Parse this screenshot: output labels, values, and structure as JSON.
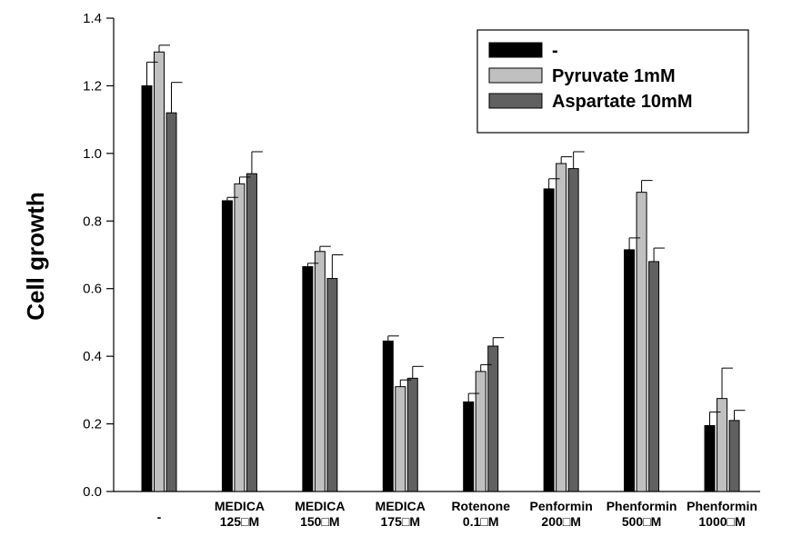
{
  "chart_data": {
    "type": "bar",
    "title": "",
    "xlabel": "",
    "ylabel": "Cell growth",
    "ylim": [
      0,
      1.4
    ],
    "yticks": [
      "0.0",
      "0.2",
      "0.4",
      "0.6",
      "0.8",
      "1.0",
      "1.2",
      "1.4"
    ],
    "grid": false,
    "legend_position": "top-right",
    "categories": [
      [
        "-"
      ],
      [
        "MEDICA",
        "125□M"
      ],
      [
        "MEDICA",
        "150□M"
      ],
      [
        "MEDICA",
        "175□M"
      ],
      [
        "Rotenone",
        "0.1□M"
      ],
      [
        "Penformin",
        "200□M"
      ],
      [
        "Phenformin",
        "500□M"
      ],
      [
        "Phenformin",
        "1000□M"
      ]
    ],
    "series": [
      {
        "name": "-",
        "color": "#000000",
        "values": [
          1.2,
          0.86,
          0.665,
          0.445,
          0.265,
          0.895,
          0.715,
          0.195
        ],
        "errors": [
          0.07,
          0.01,
          0.01,
          0.015,
          0.025,
          0.03,
          0.035,
          0.04
        ]
      },
      {
        "name": "Pyruvate 1mM",
        "color": "#c0c0c0",
        "values": [
          1.3,
          0.91,
          0.71,
          0.31,
          0.355,
          0.97,
          0.885,
          0.275
        ],
        "errors": [
          0.02,
          0.02,
          0.015,
          0.02,
          0.02,
          0.02,
          0.035,
          0.09
        ]
      },
      {
        "name": "Aspartate 10mM",
        "color": "#606060",
        "values": [
          1.12,
          0.94,
          0.63,
          0.335,
          0.43,
          0.955,
          0.68,
          0.21
        ],
        "errors": [
          0.09,
          0.065,
          0.07,
          0.035,
          0.025,
          0.05,
          0.04,
          0.03
        ]
      }
    ]
  }
}
